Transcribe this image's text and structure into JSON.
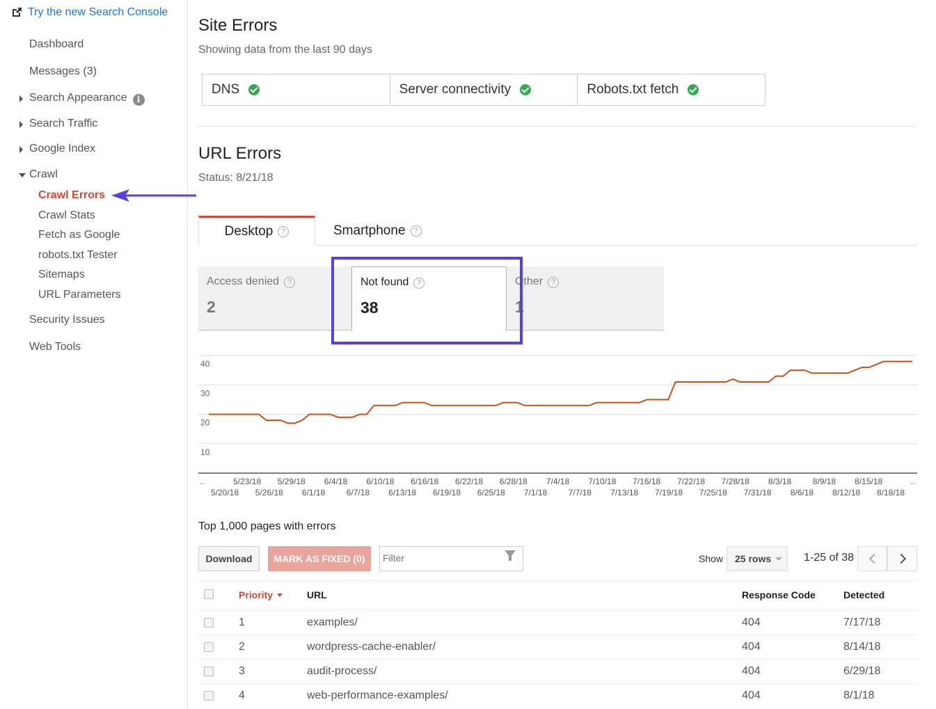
{
  "sidebar": {
    "try_link": "Try the new Search Console",
    "items": [
      {
        "label": "Dashboard"
      },
      {
        "label": "Messages (3)"
      },
      {
        "label": "Search Appearance"
      },
      {
        "label": "Search Traffic"
      },
      {
        "label": "Google Index"
      },
      {
        "label": "Crawl"
      },
      {
        "label": "Security Issues"
      },
      {
        "label": "Web Tools"
      }
    ],
    "crawl_sub": [
      {
        "label": "Crawl Errors"
      },
      {
        "label": "Crawl Stats"
      },
      {
        "label": "Fetch as Google"
      },
      {
        "label": "robots.txt Tester"
      },
      {
        "label": "Sitemaps"
      },
      {
        "label": "URL Parameters"
      }
    ],
    "info_glyph": "i"
  },
  "site_errors": {
    "title": "Site Errors",
    "subtitle": "Showing data from the last 90 days",
    "boxes": [
      {
        "label": "DNS"
      },
      {
        "label": "Server connectivity"
      },
      {
        "label": "Robots.txt fetch"
      }
    ]
  },
  "url_errors": {
    "title": "URL Errors",
    "status": "Status: 8/21/18",
    "tabs": [
      {
        "label": "Desktop"
      },
      {
        "label": "Smartphone"
      }
    ],
    "cards": [
      {
        "label": "Access denied",
        "value": "2"
      },
      {
        "label": "Not found",
        "value": "38"
      },
      {
        "label": "Other",
        "value": "1"
      }
    ],
    "help_glyph": "?"
  },
  "chart_data": {
    "type": "line",
    "ylim": [
      0,
      40
    ],
    "yticks": [
      10,
      20,
      30,
      40
    ],
    "x_labels_top": [
      "5/23/18",
      "5/29/18",
      "6/4/18",
      "6/10/18",
      "6/16/18",
      "6/22/18",
      "6/28/18",
      "7/4/18",
      "7/10/18",
      "7/16/18",
      "7/22/18",
      "7/28/18",
      "8/3/18",
      "8/9/18",
      "8/15/18"
    ],
    "x_labels_bottom": [
      "5/20/18",
      "5/26/18",
      "6/1/18",
      "6/7/18",
      "6/13/18",
      "6/19/18",
      "6/25/18",
      "7/1/18",
      "7/7/18",
      "7/13/18",
      "7/19/18",
      "7/25/18",
      "7/31/18",
      "8/6/18",
      "8/12/18",
      "8/18/18"
    ],
    "edge_label": "..",
    "series": [
      {
        "color": "#c9501c",
        "values": [
          20,
          20,
          20,
          20,
          20,
          20,
          20,
          20,
          18,
          18,
          18,
          17,
          17,
          18,
          20,
          20,
          20,
          20,
          19,
          19,
          19,
          20,
          20,
          23,
          23,
          23,
          23,
          24,
          24,
          24,
          24,
          23,
          23,
          23,
          23,
          23,
          23,
          23,
          23,
          23,
          23,
          24,
          24,
          24,
          23,
          23,
          23,
          23,
          23,
          23,
          23,
          23,
          23,
          23,
          24,
          24,
          24,
          24,
          24,
          24,
          24,
          25,
          25,
          25,
          25,
          31,
          31,
          31,
          31,
          31,
          31,
          31,
          31,
          32,
          31,
          31,
          31,
          31,
          31,
          33,
          33,
          35,
          35,
          35,
          34,
          34,
          34,
          34,
          34,
          34,
          35,
          36,
          36,
          37,
          38,
          38,
          38,
          38,
          38
        ]
      }
    ]
  },
  "table": {
    "heading": "Top 1,000 pages with errors",
    "download_label": "Download",
    "mark_fixed_label": "MARK AS FIXED (0)",
    "filter_placeholder": "Filter",
    "show_label": "Show",
    "rows_option": "25 rows",
    "page_count": "1-25 of 38",
    "columns": {
      "priority": "Priority",
      "url": "URL",
      "response": "Response Code",
      "detected": "Detected"
    },
    "rows": [
      {
        "priority": "1",
        "url": "examples/",
        "response": "404",
        "detected": "7/17/18"
      },
      {
        "priority": "2",
        "url": "wordpress-cache-enabler/",
        "response": "404",
        "detected": "8/14/18"
      },
      {
        "priority": "3",
        "url": "audit-process/",
        "response": "404",
        "detected": "6/29/18"
      },
      {
        "priority": "4",
        "url": "web-performance-examples/",
        "response": "404",
        "detected": "8/1/18"
      }
    ]
  },
  "colors": {
    "accent": "#d14836",
    "highlight": "#5b3ee0",
    "link": "#1a73e8",
    "ok": "#34a853"
  }
}
